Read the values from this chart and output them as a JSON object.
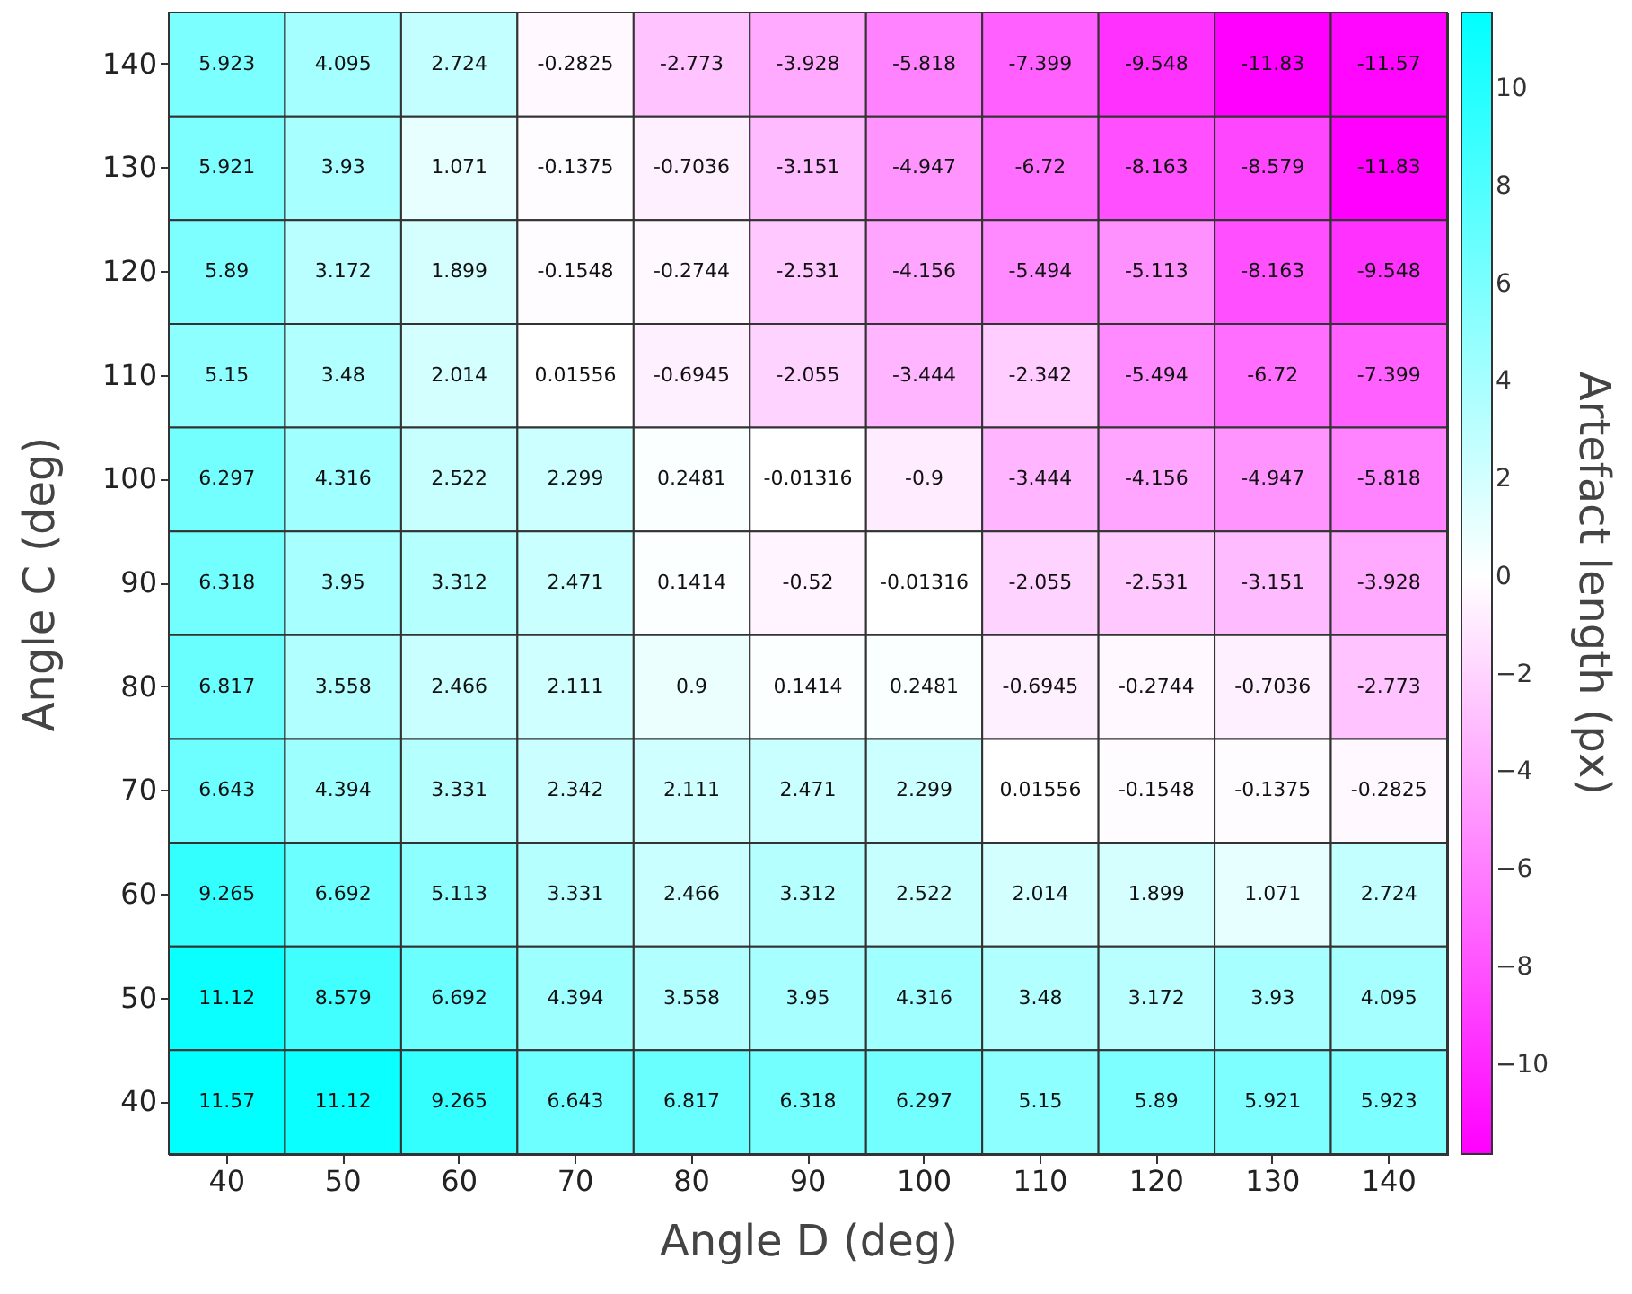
{
  "chart_data": {
    "type": "heatmap",
    "xlabel": "Angle D (deg)",
    "ylabel": "Angle C (deg)",
    "legend_title": "Artefact length (px)",
    "categories": [
      "40",
      "50",
      "60",
      "70",
      "80",
      "90",
      "100",
      "110",
      "120",
      "130",
      "140"
    ],
    "y_categories": [
      "140",
      "130",
      "120",
      "110",
      "100",
      "90",
      "80",
      "70",
      "60",
      "50",
      "40"
    ],
    "cells": [
      [
        5.923,
        4.095,
        2.724,
        -0.2825,
        -2.773,
        -3.928,
        -5.818,
        -7.399,
        -9.548,
        -11.83,
        -11.57
      ],
      [
        5.921,
        3.93,
        1.071,
        -0.1375,
        -0.7036,
        -3.151,
        -4.947,
        -6.72,
        -8.163,
        -8.579,
        -11.83
      ],
      [
        5.89,
        3.172,
        1.899,
        -0.1548,
        -0.2744,
        -2.531,
        -4.156,
        -5.494,
        -5.113,
        -8.163,
        -9.548
      ],
      [
        5.15,
        3.48,
        2.014,
        0.01556,
        -0.6945,
        -2.055,
        -3.444,
        -2.342,
        -5.494,
        -6.72,
        -7.399
      ],
      [
        6.297,
        4.316,
        2.522,
        2.299,
        0.2481,
        -0.01316,
        -0.9,
        -3.444,
        -4.156,
        -4.947,
        -5.818
      ],
      [
        6.318,
        3.95,
        3.312,
        2.471,
        0.1414,
        -0.52,
        -0.01316,
        -2.055,
        -2.531,
        -3.151,
        -3.928
      ],
      [
        6.817,
        3.558,
        2.466,
        2.111,
        0.9,
        0.1414,
        0.2481,
        -0.6945,
        -0.2744,
        -0.7036,
        -2.773
      ],
      [
        6.643,
        4.394,
        3.331,
        2.342,
        2.111,
        2.471,
        2.299,
        0.01556,
        -0.1548,
        -0.1375,
        -0.2825
      ],
      [
        9.265,
        6.692,
        5.113,
        3.331,
        2.466,
        3.312,
        2.522,
        2.014,
        1.899,
        1.071,
        2.724
      ],
      [
        11.12,
        8.579,
        6.692,
        4.394,
        3.558,
        3.95,
        4.316,
        3.48,
        3.172,
        3.93,
        4.095
      ],
      [
        11.57,
        11.12,
        9.265,
        6.643,
        6.817,
        6.318,
        6.297,
        5.15,
        5.89,
        5.921,
        5.923
      ]
    ],
    "clim": [
      -11.83,
      11.57
    ],
    "cticks": [
      -10,
      -8,
      -6,
      -4,
      -2,
      0,
      2,
      4,
      6,
      8,
      10
    ],
    "colors": [
      "#ff00ff",
      "#ffffff",
      "#00ffff"
    ],
    "data_labels": true
  }
}
